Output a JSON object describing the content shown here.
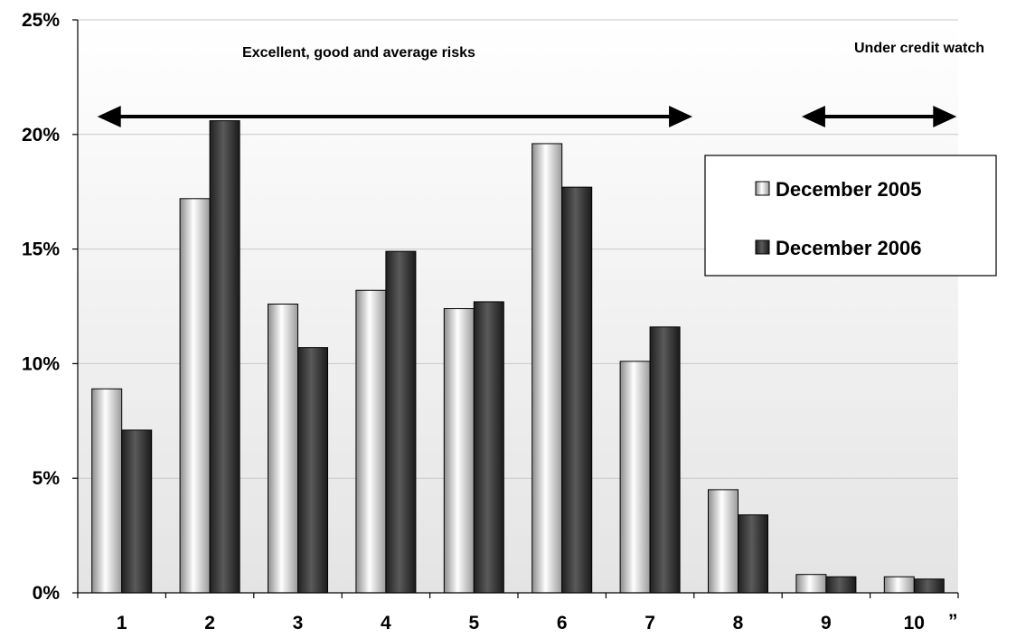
{
  "chart_data": {
    "type": "bar",
    "categories": [
      "1",
      "2",
      "3",
      "4",
      "5",
      "6",
      "7",
      "8",
      "9",
      "10"
    ],
    "series": [
      {
        "name": "December 2005",
        "values": [
          8.9,
          17.2,
          12.6,
          13.2,
          12.4,
          19.6,
          10.1,
          4.5,
          0.8,
          0.7
        ]
      },
      {
        "name": "December 2006",
        "values": [
          7.1,
          20.6,
          10.7,
          14.9,
          12.7,
          17.7,
          11.6,
          3.4,
          0.7,
          0.6
        ]
      }
    ],
    "ylim": [
      0,
      25
    ],
    "yticks": [
      "0%",
      "5%",
      "10%",
      "15%",
      "20%",
      "25%"
    ],
    "grid": true,
    "legend_position": "right",
    "annotations": [
      {
        "text": "Excellent, good and average risks",
        "span": [
          "1",
          "7"
        ]
      },
      {
        "text": "Under credit watch",
        "span": [
          "9",
          "10"
        ]
      }
    ],
    "trailing_mark": "”",
    "colors": {
      "series_1": "#d9d9d9",
      "series_2": "#333333"
    }
  }
}
